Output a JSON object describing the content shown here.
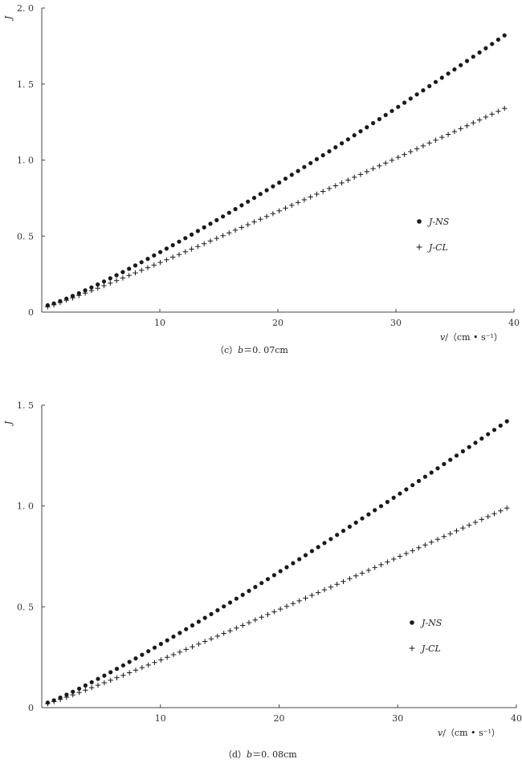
{
  "chart_data": [
    {
      "type": "scatter",
      "panel": "c",
      "caption": {
        "prefix": "（c）",
        "var": "b",
        "value": "＝0. 07cm"
      },
      "ylabel": "J",
      "xlabel": {
        "var": "v",
        "unit": "/（cm • s⁻¹）"
      },
      "xlim": [
        0,
        40
      ],
      "ylim": [
        0,
        2.0
      ],
      "xticks": [
        {
          "v": 10,
          "label": "10"
        },
        {
          "v": 20,
          "label": "20"
        },
        {
          "v": 30,
          "label": "30"
        },
        {
          "v": 40,
          "label": "40"
        }
      ],
      "yticks": [
        {
          "v": 0,
          "label": "0"
        },
        {
          "v": 0.5,
          "label": "0. 5"
        },
        {
          "v": 1.0,
          "label": "1. 0"
        },
        {
          "v": 1.5,
          "label": "1. 5"
        },
        {
          "v": 2.0,
          "label": "2. 0"
        }
      ],
      "legend": {
        "position": "right-middle",
        "labels": [
          "J-NS",
          "J-CL"
        ]
      },
      "series": [
        {
          "name": "J-NS",
          "marker": "dot",
          "x_start": 0.5,
          "x_end": 39.2,
          "count": 74,
          "y_start": 0.045,
          "y_end": 1.82,
          "exp": 1.16
        },
        {
          "name": "J-CL",
          "marker": "plus",
          "x_start": 0.5,
          "x_end": 39.2,
          "count": 74,
          "y_start": 0.035,
          "y_end": 1.34,
          "exp": 1.07
        }
      ]
    },
    {
      "type": "scatter",
      "panel": "d",
      "caption": {
        "prefix": "（d）",
        "var": "b",
        "value": "＝0. 08cm"
      },
      "ylabel": "J",
      "xlabel": {
        "var": "v",
        "unit": "/（cm • s⁻¹）"
      },
      "xlim": [
        0,
        40
      ],
      "ylim": [
        0,
        1.5
      ],
      "xticks": [
        {
          "v": 10,
          "label": "10"
        },
        {
          "v": 20,
          "label": "20"
        },
        {
          "v": 30,
          "label": "30"
        },
        {
          "v": 40,
          "label": "40"
        }
      ],
      "yticks": [
        {
          "v": 0,
          "label": "0"
        },
        {
          "v": 0.5,
          "label": "0. 5"
        },
        {
          "v": 1.0,
          "label": "1. 0"
        },
        {
          "v": 1.5,
          "label": "1. 5"
        }
      ],
      "legend": {
        "position": "right-middle",
        "labels": [
          "J-NS",
          "J-CL"
        ]
      },
      "series": [
        {
          "name": "J-NS",
          "marker": "dot",
          "x_start": 0.5,
          "x_end": 39.2,
          "count": 74,
          "y_start": 0.025,
          "y_end": 1.42,
          "exp": 1.12
        },
        {
          "name": "J-CL",
          "marker": "plus",
          "x_start": 0.5,
          "x_end": 39.2,
          "count": 74,
          "y_start": 0.02,
          "y_end": 0.99,
          "exp": 1.07
        }
      ]
    }
  ]
}
